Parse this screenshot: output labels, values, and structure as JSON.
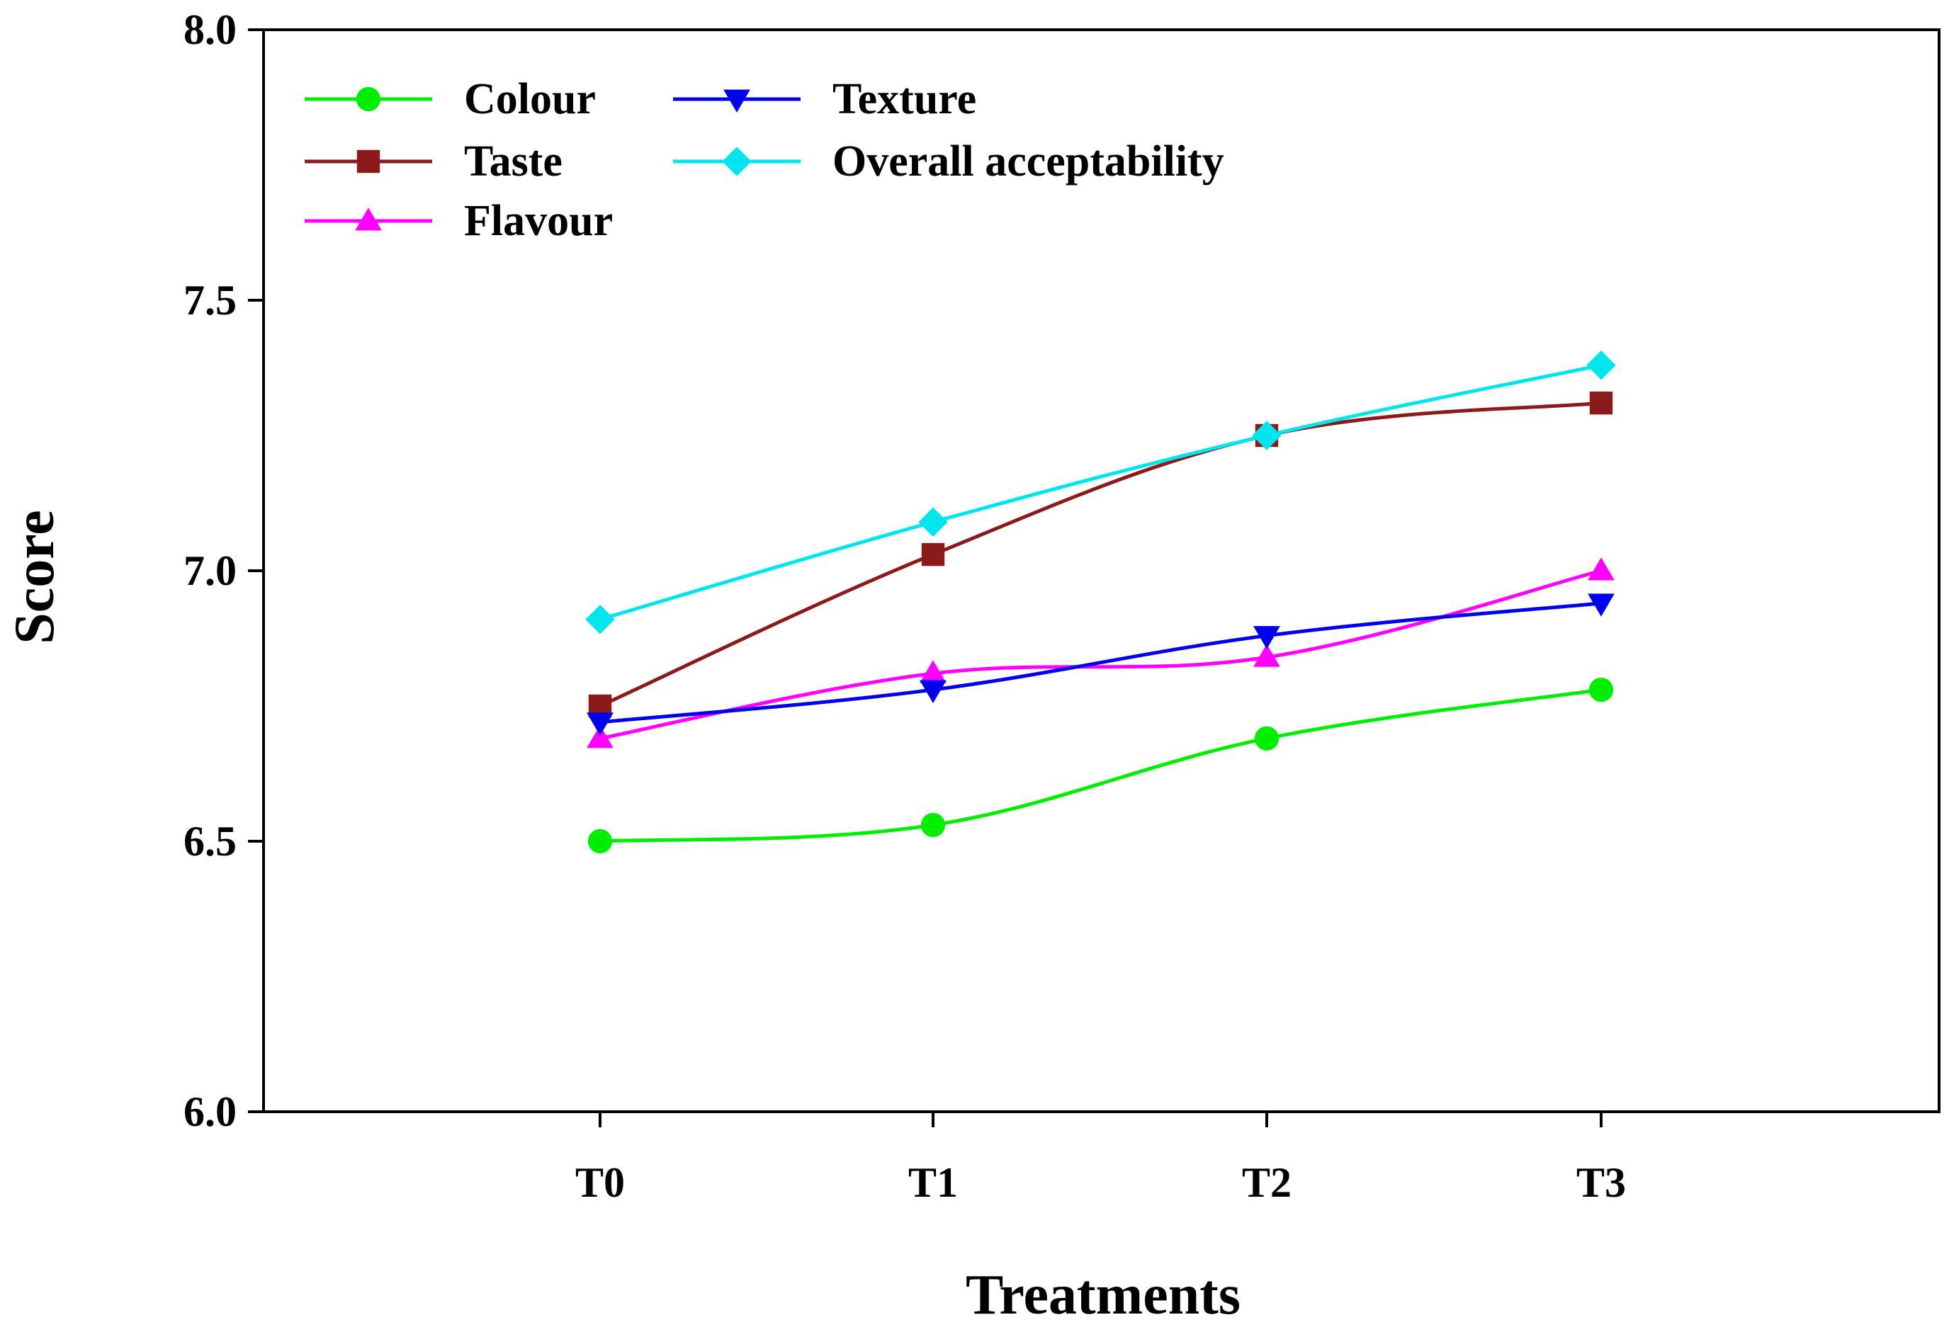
{
  "chart_data": {
    "type": "line",
    "xlabel": "Treatments",
    "ylabel": "Score",
    "categories": [
      "T0",
      "T1",
      "T2",
      "T3"
    ],
    "ylim": [
      6.0,
      8.0
    ],
    "yticks": [
      "6.0",
      "6.5",
      "7.0",
      "7.5",
      "8.0"
    ],
    "grid": false,
    "legend_position": "top-left",
    "series": [
      {
        "name": "Colour",
        "values": [
          6.5,
          6.53,
          6.69,
          6.78
        ],
        "color": "#00ee00",
        "marker": "circle"
      },
      {
        "name": "Taste",
        "values": [
          6.75,
          7.03,
          7.25,
          7.31
        ],
        "color": "#8b1a1a",
        "marker": "square"
      },
      {
        "name": "Flavour",
        "values": [
          6.69,
          6.81,
          6.84,
          7.0
        ],
        "color": "#ff00ff",
        "marker": "triangle-up"
      },
      {
        "name": "Texture",
        "values": [
          6.72,
          6.78,
          6.88,
          6.94
        ],
        "color": "#0000ee",
        "marker": "triangle-down"
      },
      {
        "name": "Overall acceptability",
        "values": [
          6.91,
          7.09,
          7.25,
          7.38
        ],
        "color": "#00e5ee",
        "marker": "diamond"
      }
    ]
  }
}
